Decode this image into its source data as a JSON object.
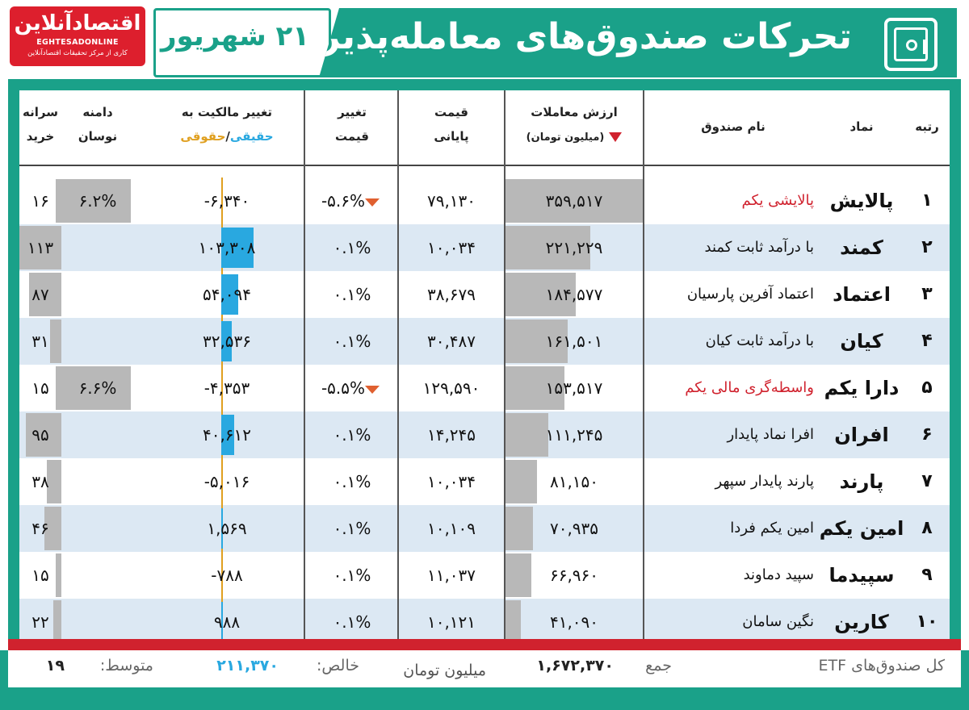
{
  "header": {
    "logo_fa": "اقتصادآنلاین",
    "logo_en": "EGHTESADONLINE",
    "logo_sub": "کاری از مرکز تحقیقات اقتصادآنلاین",
    "date": "۲۱ شهریور",
    "title": "تحرکات صندوق‌های معامله‌پذیر",
    "icon": "safe-icon"
  },
  "columns": {
    "rank": "رتبه",
    "symbol": "نماد",
    "name": "نام صندوق",
    "value_l1": "ارزش معاملات",
    "value_l2": "(میلیون تومان)",
    "price_l1": "قیمت",
    "price_l2": "پایانی",
    "chg_l1": "تغییر",
    "chg_l2": "قیمت",
    "own_l1": "تغییر مالکیت به",
    "own_real": "حقیقی",
    "own_sep": "/",
    "own_legal": "حقوقی",
    "range_l1": "دامنه",
    "range_l2": "نوسان",
    "buy_l1": "سرانه",
    "buy_l2": "خرید"
  },
  "colors": {
    "accent": "#1aa189",
    "red": "#d0222e",
    "real": "#29a8e0",
    "legal": "#e0a020",
    "bar": "#b8b8b8",
    "row_alt": "#dce8f3"
  },
  "rows": [
    {
      "rank": "۱",
      "symbol": "پالایش",
      "name": "پالایشی یکم",
      "name_red": true,
      "value": "۳۵۹,۵۱۷",
      "value_frac": 1.0,
      "price": "۷۹,۱۳۰",
      "chg": "-۵.۶%",
      "chg_down": true,
      "own": "-۶,۳۴۰",
      "own_num": -6340,
      "range": "۶.۲%",
      "range_frac": 0.95,
      "buy": "۱۶",
      "buy_frac": 0.14
    },
    {
      "rank": "۲",
      "symbol": "کمند",
      "name": "با درآمد ثابت کمند",
      "name_red": false,
      "value": "۲۲۱,۲۲۹",
      "value_frac": 0.62,
      "price": "۱۰,۰۳۴",
      "chg": "۰.۱%",
      "chg_down": false,
      "own": "۱۰۳,۳۰۸",
      "own_num": 103308,
      "range": "",
      "range_frac": 0,
      "buy": "۱۱۳",
      "buy_frac": 1.0
    },
    {
      "rank": "۳",
      "symbol": "اعتماد",
      "name": "اعتماد آفرین پارسیان",
      "name_red": false,
      "value": "۱۸۴,۵۷۷",
      "value_frac": 0.51,
      "price": "۳۸,۶۷۹",
      "chg": "۰.۱%",
      "chg_down": false,
      "own": "۵۴,۰۹۴",
      "own_num": 54094,
      "range": "",
      "range_frac": 0,
      "buy": "۸۷",
      "buy_frac": 0.77
    },
    {
      "rank": "۴",
      "symbol": "کیان",
      "name": "با درآمد ثابت کیان",
      "name_red": false,
      "value": "۱۶۱,۵۰۱",
      "value_frac": 0.45,
      "price": "۳۰,۴۸۷",
      "chg": "۰.۱%",
      "chg_down": false,
      "own": "۳۲,۵۳۶",
      "own_num": 32536,
      "range": "",
      "range_frac": 0,
      "buy": "۳۱",
      "buy_frac": 0.27
    },
    {
      "rank": "۵",
      "symbol": "دارا یکم",
      "name": "واسطه‌گری مالی یکم",
      "name_red": true,
      "value": "۱۵۳,۵۱۷",
      "value_frac": 0.43,
      "price": "۱۲۹,۵۹۰",
      "chg": "-۵.۵%",
      "chg_down": true,
      "own": "-۴,۳۵۳",
      "own_num": -4353,
      "range": "۶.۶%",
      "range_frac": 0.95,
      "buy": "۱۵",
      "buy_frac": 0.13
    },
    {
      "rank": "۶",
      "symbol": "افران",
      "name": "افرا نماد پایدار",
      "name_red": false,
      "value": "۱۱۱,۲۴۵",
      "value_frac": 0.31,
      "price": "۱۴,۲۴۵",
      "chg": "۰.۱%",
      "chg_down": false,
      "own": "۴۰,۶۱۲",
      "own_num": 40612,
      "range": "",
      "range_frac": 0,
      "buy": "۹۵",
      "buy_frac": 0.84
    },
    {
      "rank": "۷",
      "symbol": "پارند",
      "name": "پارند پایدار سپهر",
      "name_red": false,
      "value": "۸۱,۱۵۰",
      "value_frac": 0.23,
      "price": "۱۰,۰۳۴",
      "chg": "۰.۱%",
      "chg_down": false,
      "own": "-۵,۰۱۶",
      "own_num": -5016,
      "range": "",
      "range_frac": 0,
      "buy": "۳۸",
      "buy_frac": 0.34
    },
    {
      "rank": "۸",
      "symbol": "امین یکم",
      "name": "امین یکم فردا",
      "name_red": false,
      "value": "۷۰,۹۳۵",
      "value_frac": 0.2,
      "price": "۱۰,۱۰۹",
      "chg": "۰.۱%",
      "chg_down": false,
      "own": "۱,۵۶۹",
      "own_num": 1569,
      "range": "",
      "range_frac": 0,
      "buy": "۴۶",
      "buy_frac": 0.41
    },
    {
      "rank": "۹",
      "symbol": "سپیدما",
      "name": "سپید دماوند",
      "name_red": false,
      "value": "۶۶,۹۶۰",
      "value_frac": 0.19,
      "price": "۱۱,۰۳۷",
      "chg": "۰.۱%",
      "chg_down": false,
      "own": "-۷۸۸",
      "own_num": -788,
      "range": "",
      "range_frac": 0,
      "buy": "۱۵",
      "buy_frac": 0.13
    },
    {
      "rank": "۱۰",
      "symbol": "کارین",
      "name": "نگین سامان",
      "name_red": false,
      "value": "۴۱,۰۹۰",
      "value_frac": 0.11,
      "price": "۱۰,۱۲۱",
      "chg": "۰.۱%",
      "chg_down": false,
      "own": "۹۸۸",
      "own_num": 988,
      "range": "",
      "range_frac": 0,
      "buy": "۲۲",
      "buy_frac": 0.19
    }
  ],
  "footer": {
    "label": "کل صندوق‌های ETF",
    "sum_label": "جمع",
    "sum": "۱,۶۷۲,۳۷۰",
    "unit": "میلیون تومان",
    "net_label": "خالص:",
    "net": "۲۱۱,۳۷۰",
    "avg_label": "متوسط:",
    "avg": "۱۹"
  }
}
